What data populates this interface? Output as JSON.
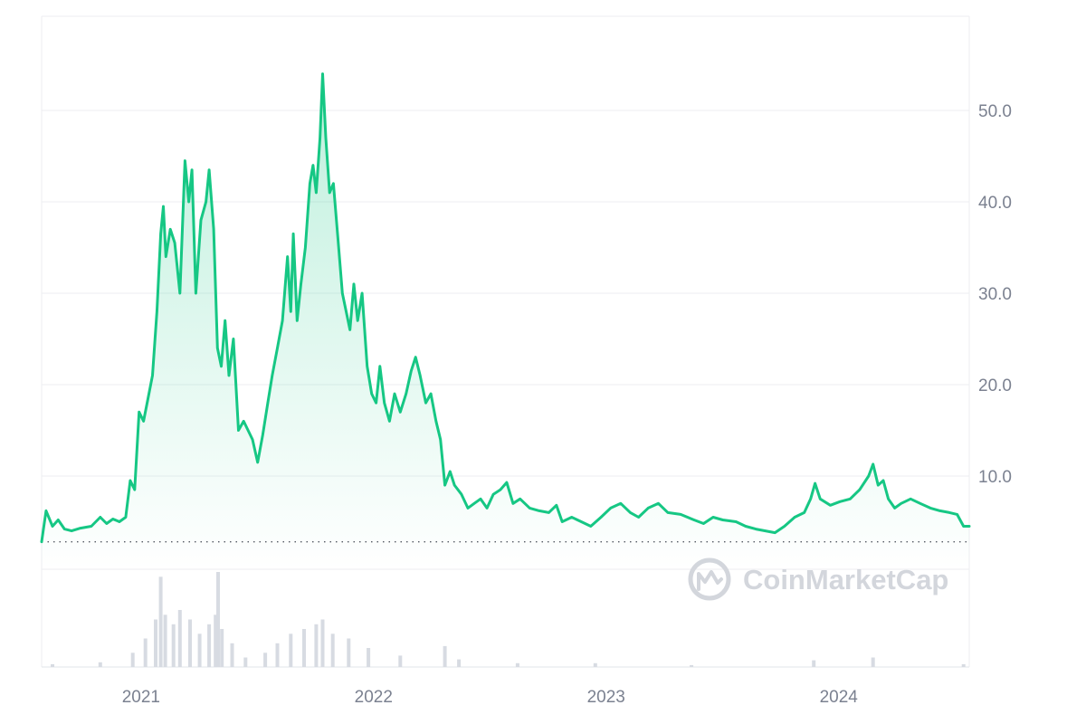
{
  "chart_data": {
    "type": "area",
    "title": "",
    "xlabel": "",
    "ylabel": "",
    "x_range": [
      "2020-08-15",
      "2024-08-10"
    ],
    "ylim": [
      0,
      60
    ],
    "y_ticks": [
      {
        "value": 10,
        "label": "10.0"
      },
      {
        "value": 20,
        "label": "20.0"
      },
      {
        "value": 30,
        "label": "30.0"
      },
      {
        "value": 40,
        "label": "40.0"
      },
      {
        "value": 50,
        "label": "50.0"
      }
    ],
    "x_ticks": [
      {
        "date": "2021-01-01",
        "label": "2021"
      },
      {
        "date": "2022-01-01",
        "label": "2022"
      },
      {
        "date": "2023-01-01",
        "label": "2023"
      },
      {
        "date": "2024-01-01",
        "label": "2024"
      }
    ],
    "grid": true,
    "y_axis_position": "right",
    "reference_line": {
      "value": 2.8,
      "style": "dotted"
    },
    "colors": {
      "line": "#16c784",
      "area_top": "#16c784",
      "volume": "#d7dbe2",
      "axis_text": "#7b8190",
      "watermark": "#d3d6dc"
    },
    "watermark": {
      "text": "CoinMarketCap",
      "icon": "coinmarketcap-logo-icon"
    },
    "series": [
      {
        "values": [
          [
            "2020-08-15",
            2.8
          ],
          [
            "2020-08-22",
            6.2
          ],
          [
            "2020-09-01",
            4.5
          ],
          [
            "2020-09-10",
            5.2
          ],
          [
            "2020-09-20",
            4.2
          ],
          [
            "2020-10-01",
            4.0
          ],
          [
            "2020-10-15",
            4.3
          ],
          [
            "2020-11-01",
            4.5
          ],
          [
            "2020-11-15",
            5.5
          ],
          [
            "2020-11-25",
            4.8
          ],
          [
            "2020-12-05",
            5.3
          ],
          [
            "2020-12-15",
            5.0
          ],
          [
            "2020-12-25",
            5.5
          ],
          [
            "2021-01-01",
            9.5
          ],
          [
            "2021-01-08",
            8.5
          ],
          [
            "2021-01-15",
            17.0
          ],
          [
            "2021-01-22",
            16.0
          ],
          [
            "2021-01-29",
            18.5
          ],
          [
            "2021-02-05",
            21.0
          ],
          [
            "2021-02-12",
            28.0
          ],
          [
            "2021-02-18",
            36.5
          ],
          [
            "2021-02-22",
            39.5
          ],
          [
            "2021-02-26",
            34.0
          ],
          [
            "2021-03-05",
            37.0
          ],
          [
            "2021-03-12",
            35.5
          ],
          [
            "2021-03-20",
            30.0
          ],
          [
            "2021-03-28",
            44.5
          ],
          [
            "2021-04-03",
            40.0
          ],
          [
            "2021-04-08",
            43.5
          ],
          [
            "2021-04-14",
            30.0
          ],
          [
            "2021-04-22",
            38.0
          ],
          [
            "2021-04-30",
            40.0
          ],
          [
            "2021-05-05",
            43.5
          ],
          [
            "2021-05-12",
            37.0
          ],
          [
            "2021-05-18",
            24.0
          ],
          [
            "2021-05-24",
            22.0
          ],
          [
            "2021-05-30",
            27.0
          ],
          [
            "2021-06-05",
            21.0
          ],
          [
            "2021-06-12",
            25.0
          ],
          [
            "2021-06-20",
            15.0
          ],
          [
            "2021-06-28",
            16.0
          ],
          [
            "2021-07-05",
            15.0
          ],
          [
            "2021-07-12",
            14.0
          ],
          [
            "2021-07-20",
            11.5
          ],
          [
            "2021-07-28",
            14.5
          ],
          [
            "2021-08-05",
            18.0
          ],
          [
            "2021-08-12",
            21.0
          ],
          [
            "2021-08-20",
            24.0
          ],
          [
            "2021-08-28",
            27.0
          ],
          [
            "2021-09-05",
            34.0
          ],
          [
            "2021-09-10",
            28.0
          ],
          [
            "2021-09-14",
            36.5
          ],
          [
            "2021-09-20",
            27.0
          ],
          [
            "2021-09-26",
            31.0
          ],
          [
            "2021-10-03",
            35.0
          ],
          [
            "2021-10-10",
            42.0
          ],
          [
            "2021-10-15",
            44.0
          ],
          [
            "2021-10-20",
            41.0
          ],
          [
            "2021-10-26",
            47.0
          ],
          [
            "2021-10-30",
            54.0
          ],
          [
            "2021-11-04",
            47.0
          ],
          [
            "2021-11-10",
            41.0
          ],
          [
            "2021-11-16",
            42.0
          ],
          [
            "2021-11-23",
            36.0
          ],
          [
            "2021-11-30",
            30.0
          ],
          [
            "2021-12-06",
            28.0
          ],
          [
            "2021-12-12",
            26.0
          ],
          [
            "2021-12-18",
            31.0
          ],
          [
            "2021-12-24",
            27.0
          ],
          [
            "2021-12-31",
            30.0
          ],
          [
            "2022-01-08",
            22.0
          ],
          [
            "2022-01-15",
            19.0
          ],
          [
            "2022-01-22",
            18.0
          ],
          [
            "2022-01-28",
            22.0
          ],
          [
            "2022-02-04",
            18.0
          ],
          [
            "2022-02-12",
            16.0
          ],
          [
            "2022-02-20",
            19.0
          ],
          [
            "2022-03-01",
            17.0
          ],
          [
            "2022-03-10",
            19.0
          ],
          [
            "2022-03-18",
            21.5
          ],
          [
            "2022-03-25",
            23.0
          ],
          [
            "2022-04-01",
            21.0
          ],
          [
            "2022-04-10",
            18.0
          ],
          [
            "2022-04-18",
            19.0
          ],
          [
            "2022-04-26",
            16.0
          ],
          [
            "2022-05-03",
            14.0
          ],
          [
            "2022-05-10",
            9.0
          ],
          [
            "2022-05-18",
            10.5
          ],
          [
            "2022-05-25",
            9.0
          ],
          [
            "2022-06-05",
            8.0
          ],
          [
            "2022-06-15",
            6.5
          ],
          [
            "2022-06-25",
            7.0
          ],
          [
            "2022-07-05",
            7.5
          ],
          [
            "2022-07-15",
            6.5
          ],
          [
            "2022-07-25",
            8.0
          ],
          [
            "2022-08-05",
            8.5
          ],
          [
            "2022-08-15",
            9.3
          ],
          [
            "2022-08-25",
            7.0
          ],
          [
            "2022-09-05",
            7.5
          ],
          [
            "2022-09-20",
            6.5
          ],
          [
            "2022-10-05",
            6.2
          ],
          [
            "2022-10-20",
            6.0
          ],
          [
            "2022-11-01",
            6.8
          ],
          [
            "2022-11-10",
            5.0
          ],
          [
            "2022-11-25",
            5.5
          ],
          [
            "2022-12-10",
            5.0
          ],
          [
            "2022-12-25",
            4.5
          ],
          [
            "2023-01-10",
            5.5
          ],
          [
            "2023-01-25",
            6.5
          ],
          [
            "2023-02-10",
            7.0
          ],
          [
            "2023-02-25",
            6.0
          ],
          [
            "2023-03-10",
            5.5
          ],
          [
            "2023-03-25",
            6.5
          ],
          [
            "2023-04-10",
            7.0
          ],
          [
            "2023-04-25",
            6.0
          ],
          [
            "2023-05-15",
            5.8
          ],
          [
            "2023-06-05",
            5.2
          ],
          [
            "2023-06-20",
            4.8
          ],
          [
            "2023-07-05",
            5.5
          ],
          [
            "2023-07-20",
            5.2
          ],
          [
            "2023-08-10",
            5.0
          ],
          [
            "2023-08-25",
            4.5
          ],
          [
            "2023-09-10",
            4.2
          ],
          [
            "2023-09-25",
            4.0
          ],
          [
            "2023-10-10",
            3.8
          ],
          [
            "2023-10-25",
            4.5
          ],
          [
            "2023-11-10",
            5.5
          ],
          [
            "2023-11-25",
            6.0
          ],
          [
            "2023-12-05",
            7.5
          ],
          [
            "2023-12-12",
            9.2
          ],
          [
            "2023-12-20",
            7.5
          ],
          [
            "2024-01-05",
            6.8
          ],
          [
            "2024-01-20",
            7.2
          ],
          [
            "2024-02-05",
            7.5
          ],
          [
            "2024-02-20",
            8.5
          ],
          [
            "2024-03-05",
            10.0
          ],
          [
            "2024-03-12",
            11.3
          ],
          [
            "2024-03-20",
            9.0
          ],
          [
            "2024-03-28",
            9.5
          ],
          [
            "2024-04-05",
            7.5
          ],
          [
            "2024-04-15",
            6.5
          ],
          [
            "2024-04-25",
            7.0
          ],
          [
            "2024-05-10",
            7.5
          ],
          [
            "2024-05-25",
            7.0
          ],
          [
            "2024-06-10",
            6.5
          ],
          [
            "2024-06-25",
            6.2
          ],
          [
            "2024-07-10",
            6.0
          ],
          [
            "2024-07-22",
            5.8
          ],
          [
            "2024-08-01",
            4.5
          ],
          [
            "2024-08-10",
            4.5
          ]
        ]
      }
    ],
    "volume": {
      "values": [
        [
          "2020-09-01",
          0.03
        ],
        [
          "2020-11-15",
          0.05
        ],
        [
          "2021-01-05",
          0.15
        ],
        [
          "2021-01-25",
          0.3
        ],
        [
          "2021-02-10",
          0.5
        ],
        [
          "2021-02-18",
          0.95
        ],
        [
          "2021-02-25",
          0.55
        ],
        [
          "2021-03-10",
          0.45
        ],
        [
          "2021-03-20",
          0.6
        ],
        [
          "2021-04-05",
          0.5
        ],
        [
          "2021-04-20",
          0.35
        ],
        [
          "2021-05-05",
          0.45
        ],
        [
          "2021-05-15",
          0.55
        ],
        [
          "2021-05-19",
          1.0
        ],
        [
          "2021-05-25",
          0.4
        ],
        [
          "2021-06-10",
          0.25
        ],
        [
          "2021-07-01",
          0.1
        ],
        [
          "2021-08-01",
          0.15
        ],
        [
          "2021-08-20",
          0.25
        ],
        [
          "2021-09-10",
          0.35
        ],
        [
          "2021-10-01",
          0.4
        ],
        [
          "2021-10-20",
          0.45
        ],
        [
          "2021-10-30",
          0.5
        ],
        [
          "2021-11-15",
          0.35
        ],
        [
          "2021-12-10",
          0.3
        ],
        [
          "2022-01-10",
          0.2
        ],
        [
          "2022-03-01",
          0.12
        ],
        [
          "2022-05-10",
          0.22
        ],
        [
          "2022-06-01",
          0.08
        ],
        [
          "2022-09-01",
          0.04
        ],
        [
          "2023-01-01",
          0.04
        ],
        [
          "2023-06-01",
          0.02
        ],
        [
          "2023-12-10",
          0.07
        ],
        [
          "2024-03-12",
          0.1
        ],
        [
          "2024-08-01",
          0.03
        ]
      ]
    }
  }
}
